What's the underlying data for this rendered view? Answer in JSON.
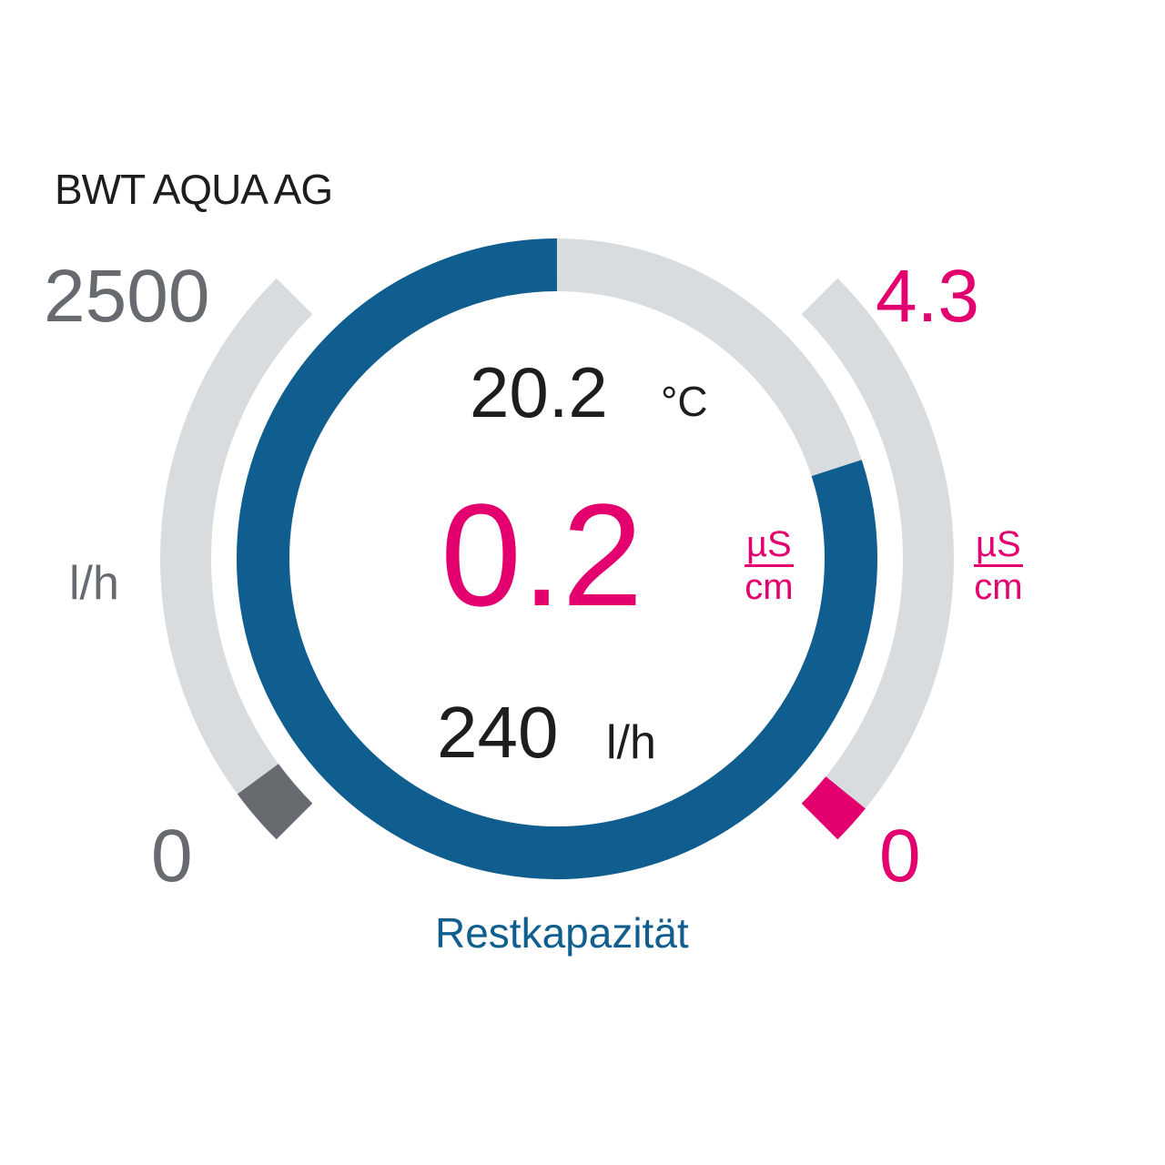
{
  "brand": "BWT AQUA AG",
  "colors": {
    "blue": "#0f5e8f",
    "track": "#d9dcde",
    "gray": "#676b6f",
    "pink": "#e3006e",
    "text": "#1d1d1b"
  },
  "flow_gauge": {
    "max_label": "2500",
    "min_label": "0",
    "unit": "l/h",
    "max": 2500,
    "value": 240
  },
  "conductivity_gauge": {
    "max_label": "4.3",
    "min_label": "0",
    "unit_numerator": "µS",
    "unit_denominator": "cm",
    "max": 4.3,
    "value": 0.2
  },
  "center": {
    "temperature": "20.2",
    "temperature_unit": "°C",
    "conductivity": "0.2",
    "conductivity_unit_numerator": "µS",
    "conductivity_unit_denominator": "cm",
    "flow": "240",
    "flow_unit": "l/h"
  },
  "capacity": {
    "label": "Restkapazität",
    "fraction": 0.8
  }
}
